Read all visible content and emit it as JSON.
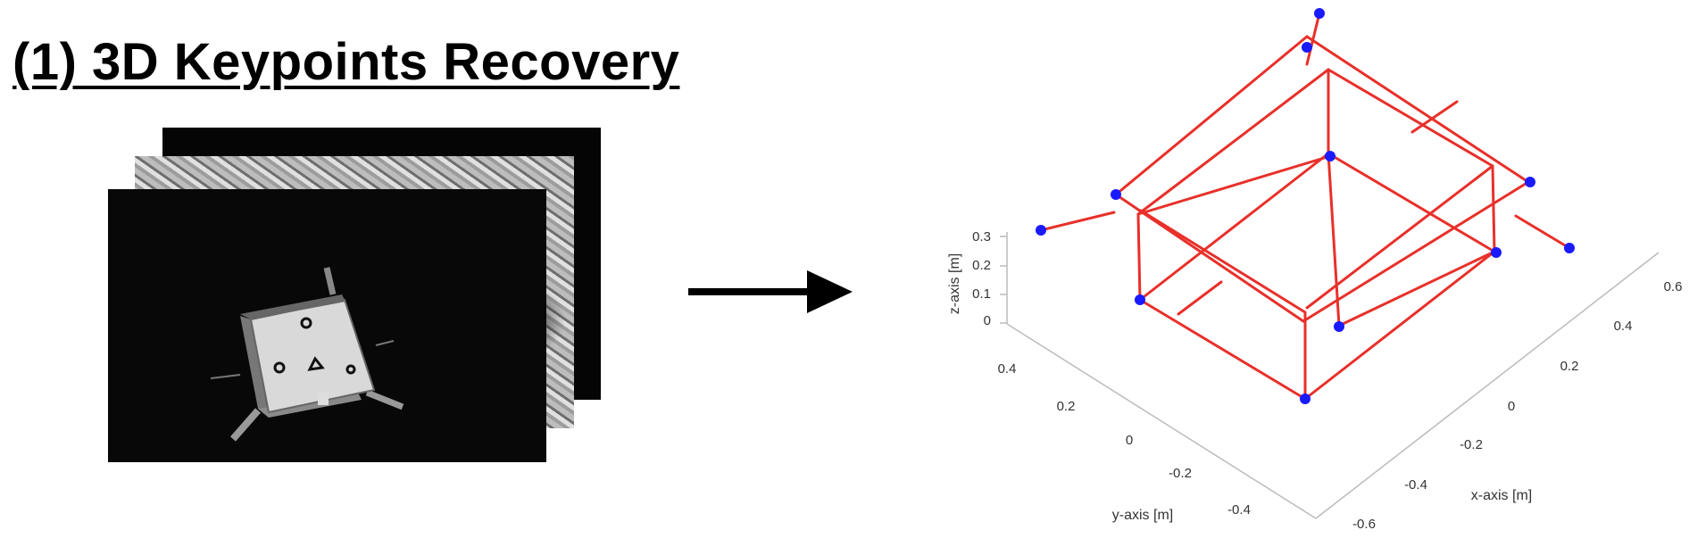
{
  "title": "(1) 3D Keypoints Recovery",
  "colors": {
    "wireframe": "#e8302a",
    "keypoint": "#1a1aff",
    "axis": "#444444"
  },
  "icons": {
    "arrow": "right-arrow-icon"
  },
  "chart_data": {
    "type": "scatter3d",
    "xlabel": "x-axis [m]",
    "ylabel": "y-axis [m]",
    "zlabel": "z-axis [m]",
    "xticks": [
      "-0.6",
      "-0.4",
      "-0.2",
      "0",
      "0.2",
      "0.4",
      "0.6"
    ],
    "yticks": [
      "-0.4",
      "-0.2",
      "0",
      "0.2",
      "0.4"
    ],
    "zticks": [
      "0",
      "0.1",
      "0.2",
      "0.3"
    ],
    "xlim": [
      -0.6,
      0.6
    ],
    "ylim": [
      -0.4,
      0.4
    ],
    "zlim": [
      0,
      0.3
    ],
    "keypoint_count": 11
  }
}
